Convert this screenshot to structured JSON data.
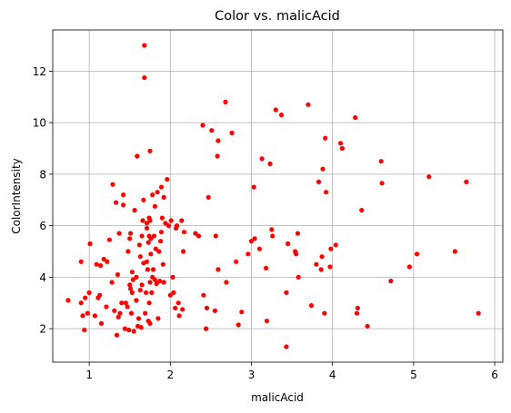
{
  "chart_data": {
    "type": "scatter",
    "title": "Color vs. malicAcid",
    "xlabel": "malicAcid",
    "ylabel": "ColorIntensity",
    "xlim": [
      0.55,
      6.1
    ],
    "ylim": [
      0.7,
      13.6
    ],
    "xticks": [
      1,
      2,
      3,
      4,
      5,
      6
    ],
    "yticks": [
      2,
      4,
      6,
      8,
      10,
      12
    ],
    "grid": true,
    "marker_color": "#ff0000",
    "points": [
      [
        0.74,
        3.1
      ],
      [
        0.9,
        3.0
      ],
      [
        0.9,
        4.6
      ],
      [
        0.92,
        2.5
      ],
      [
        0.94,
        1.95
      ],
      [
        0.95,
        3.2
      ],
      [
        0.98,
        2.6
      ],
      [
        1.0,
        3.4
      ],
      [
        1.01,
        5.3
      ],
      [
        1.07,
        2.5
      ],
      [
        1.09,
        4.5
      ],
      [
        1.11,
        3.2
      ],
      [
        1.13,
        3.3
      ],
      [
        1.14,
        4.45
      ],
      [
        1.15,
        2.2
      ],
      [
        1.18,
        4.7
      ],
      [
        1.21,
        2.85
      ],
      [
        1.22,
        4.6
      ],
      [
        1.25,
        5.45
      ],
      [
        1.28,
        3.8
      ],
      [
        1.29,
        7.6
      ],
      [
        1.31,
        2.7
      ],
      [
        1.33,
        6.9
      ],
      [
        1.34,
        1.75
      ],
      [
        1.35,
        4.1
      ],
      [
        1.36,
        2.45
      ],
      [
        1.37,
        5.7
      ],
      [
        1.38,
        2.6
      ],
      [
        1.4,
        3.0
      ],
      [
        1.42,
        6.8
      ],
      [
        1.42,
        7.2
      ],
      [
        1.44,
        2.0
      ],
      [
        1.45,
        3.0
      ],
      [
        1.47,
        2.85
      ],
      [
        1.48,
        5.0
      ],
      [
        1.49,
        1.95
      ],
      [
        1.5,
        3.7
      ],
      [
        1.5,
        5.5
      ],
      [
        1.51,
        3.55
      ],
      [
        1.51,
        5.7
      ],
      [
        1.52,
        2.6
      ],
      [
        1.53,
        4.2
      ],
      [
        1.53,
        3.4
      ],
      [
        1.54,
        3.9
      ],
      [
        1.55,
        1.9
      ],
      [
        1.56,
        6.6
      ],
      [
        1.58,
        3.1
      ],
      [
        1.58,
        4.0
      ],
      [
        1.59,
        8.7
      ],
      [
        1.6,
        2.1
      ],
      [
        1.61,
        2.4
      ],
      [
        1.62,
        5.25
      ],
      [
        1.63,
        4.8
      ],
      [
        1.63,
        3.5
      ],
      [
        1.64,
        2.05
      ],
      [
        1.65,
        3.7
      ],
      [
        1.65,
        5.6
      ],
      [
        1.66,
        6.2
      ],
      [
        1.67,
        4.55
      ],
      [
        1.67,
        7.0
      ],
      [
        1.68,
        11.75
      ],
      [
        1.68,
        13.0
      ],
      [
        1.69,
        2.6
      ],
      [
        1.7,
        3.4
      ],
      [
        1.71,
        4.6
      ],
      [
        1.71,
        5.9
      ],
      [
        1.71,
        6.1
      ],
      [
        1.72,
        4.3
      ],
      [
        1.73,
        2.3
      ],
      [
        1.73,
        5.35
      ],
      [
        1.74,
        3.0
      ],
      [
        1.74,
        5.6
      ],
      [
        1.74,
        6.3
      ],
      [
        1.75,
        2.2
      ],
      [
        1.75,
        3.8
      ],
      [
        1.75,
        6.2
      ],
      [
        1.75,
        8.9
      ],
      [
        1.76,
        4.9
      ],
      [
        1.76,
        5.5
      ],
      [
        1.77,
        3.4
      ],
      [
        1.78,
        7.2
      ],
      [
        1.78,
        4.0
      ],
      [
        1.79,
        4.3
      ],
      [
        1.8,
        5.6
      ],
      [
        1.81,
        6.75
      ],
      [
        1.81,
        3.9
      ],
      [
        1.82,
        5.1
      ],
      [
        1.83,
        3.75
      ],
      [
        1.84,
        7.3
      ],
      [
        1.85,
        2.4
      ],
      [
        1.86,
        5.0
      ],
      [
        1.87,
        3.85
      ],
      [
        1.88,
        5.4
      ],
      [
        1.89,
        5.75
      ],
      [
        1.89,
        7.5
      ],
      [
        1.9,
        6.3
      ],
      [
        1.91,
        4.5
      ],
      [
        1.92,
        3.8
      ],
      [
        1.92,
        7.1
      ],
      [
        1.94,
        6.1
      ],
      [
        1.96,
        7.8
      ],
      [
        1.98,
        6.0
      ],
      [
        2.0,
        3.3
      ],
      [
        2.01,
        6.2
      ],
      [
        2.03,
        4.0
      ],
      [
        2.04,
        3.4
      ],
      [
        2.06,
        2.8
      ],
      [
        2.07,
        5.9
      ],
      [
        2.08,
        6.0
      ],
      [
        2.1,
        3.0
      ],
      [
        2.11,
        2.5
      ],
      [
        2.14,
        6.2
      ],
      [
        2.15,
        2.75
      ],
      [
        2.16,
        5.0
      ],
      [
        2.17,
        5.75
      ],
      [
        2.31,
        5.7
      ],
      [
        2.35,
        5.6
      ],
      [
        2.4,
        9.9
      ],
      [
        2.41,
        3.3
      ],
      [
        2.44,
        2.0
      ],
      [
        2.45,
        2.8
      ],
      [
        2.47,
        7.1
      ],
      [
        2.51,
        9.7
      ],
      [
        2.55,
        2.7
      ],
      [
        2.56,
        5.6
      ],
      [
        2.58,
        8.7
      ],
      [
        2.59,
        9.3
      ],
      [
        2.59,
        4.3
      ],
      [
        2.68,
        10.8
      ],
      [
        2.69,
        3.8
      ],
      [
        2.76,
        9.6
      ],
      [
        2.81,
        4.6
      ],
      [
        2.84,
        2.15
      ],
      [
        2.88,
        2.65
      ],
      [
        2.96,
        4.9
      ],
      [
        3.0,
        5.4
      ],
      [
        3.03,
        7.5
      ],
      [
        3.04,
        5.5
      ],
      [
        3.1,
        5.1
      ],
      [
        3.13,
        8.6
      ],
      [
        3.18,
        4.35
      ],
      [
        3.19,
        2.3
      ],
      [
        3.23,
        8.4
      ],
      [
        3.25,
        5.85
      ],
      [
        3.26,
        5.6
      ],
      [
        3.3,
        10.5
      ],
      [
        3.37,
        10.3
      ],
      [
        3.43,
        3.4
      ],
      [
        3.43,
        1.3
      ],
      [
        3.45,
        5.3
      ],
      [
        3.54,
        5.0
      ],
      [
        3.55,
        4.9
      ],
      [
        3.57,
        5.7
      ],
      [
        3.58,
        4.0
      ],
      [
        3.7,
        10.7
      ],
      [
        3.74,
        2.9
      ],
      [
        3.8,
        4.5
      ],
      [
        3.83,
        7.7
      ],
      [
        3.86,
        4.3
      ],
      [
        3.87,
        4.8
      ],
      [
        3.88,
        8.2
      ],
      [
        3.9,
        2.6
      ],
      [
        3.91,
        9.4
      ],
      [
        3.92,
        7.3
      ],
      [
        3.97,
        4.4
      ],
      [
        3.98,
        5.1
      ],
      [
        4.04,
        5.25
      ],
      [
        4.1,
        9.2
      ],
      [
        4.12,
        9.0
      ],
      [
        4.28,
        10.2
      ],
      [
        4.3,
        2.6
      ],
      [
        4.31,
        2.8
      ],
      [
        4.36,
        6.6
      ],
      [
        4.43,
        2.1
      ],
      [
        4.6,
        8.5
      ],
      [
        4.61,
        7.65
      ],
      [
        4.72,
        3.85
      ],
      [
        4.95,
        4.4
      ],
      [
        5.04,
        4.9
      ],
      [
        5.19,
        7.9
      ],
      [
        5.51,
        5.0
      ],
      [
        5.65,
        7.7
      ],
      [
        5.8,
        2.6
      ]
    ]
  }
}
